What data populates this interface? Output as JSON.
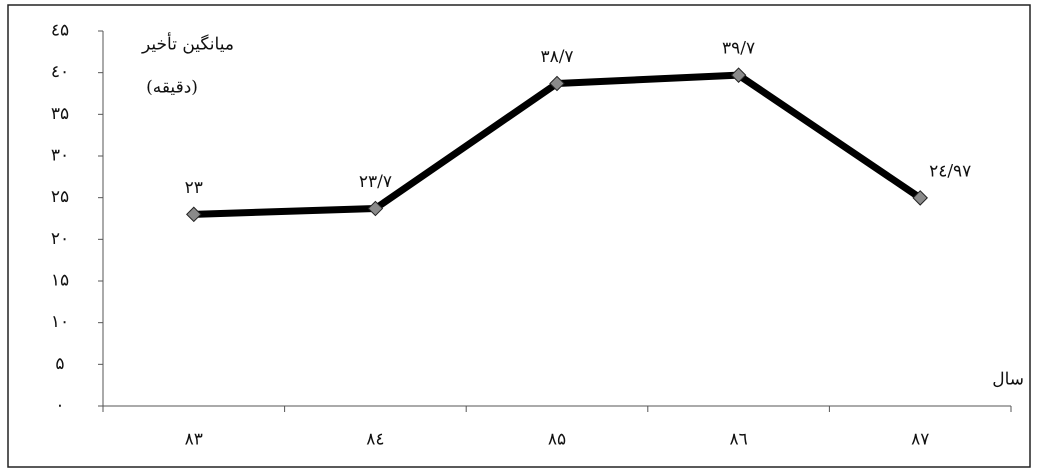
{
  "chart_data": {
    "type": "line",
    "y_label": [
      "میانگین تأخیر",
      "(دقیقه)"
    ],
    "x_label": "سال",
    "categories": [
      "۸۳",
      "۸٤",
      "۸۵",
      "۸٦",
      "۸۷"
    ],
    "series": [
      {
        "color": "#000000",
        "marker_color": "#8a8a8a",
        "values": [
          23,
          23.7,
          38.7,
          39.7,
          24.97
        ],
        "value_labels": [
          "۲۳",
          "۲۳/۷",
          "۳۸/۷",
          "۳۹/۷",
          "٢٤/۹۷"
        ]
      }
    ],
    "ylim": [
      0,
      45
    ],
    "yticks": [
      {
        "value": 0,
        "label": "٠"
      },
      {
        "value": 5,
        "label": "۵"
      },
      {
        "value": 10,
        "label": "۱۰"
      },
      {
        "value": 15,
        "label": "۱۵"
      },
      {
        "value": 20,
        "label": "۲۰"
      },
      {
        "value": 25,
        "label": "۲۵"
      },
      {
        "value": 30,
        "label": "۳۰"
      },
      {
        "value": 35,
        "label": "۳۵"
      },
      {
        "value": 40,
        "label": "٤٠"
      },
      {
        "value": 45,
        "label": "٤۵"
      }
    ],
    "grid": false
  }
}
